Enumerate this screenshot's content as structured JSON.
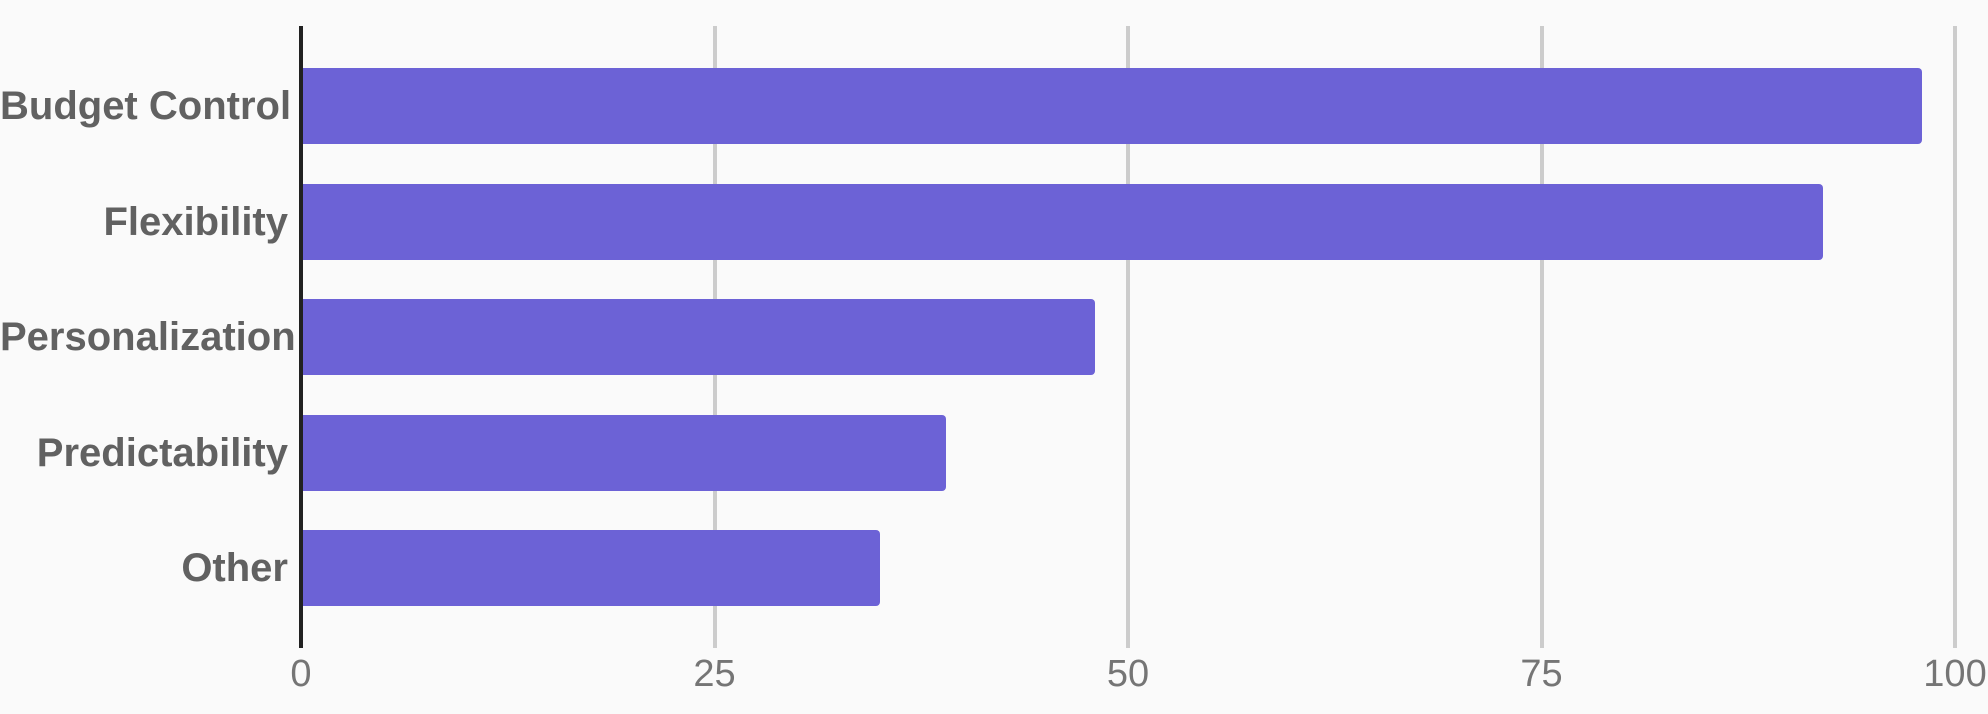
{
  "chart_data": {
    "type": "bar",
    "orientation": "horizontal",
    "categories": [
      "Budget Control",
      "Flexibility",
      "Personalization",
      "Predictability",
      "Other"
    ],
    "values": [
      98,
      92,
      48,
      39,
      35
    ],
    "xticks": [
      0,
      25,
      50,
      75,
      100
    ],
    "xlim": [
      0,
      100
    ],
    "grid": true,
    "legend": "none",
    "title": "",
    "xlabel": "",
    "ylabel": "",
    "colors": {
      "bar": "#6C62D6",
      "axis": "#212121",
      "gridline": "#cccccc",
      "tick_label": "#757575",
      "category_label": "#616161",
      "background": "#fafafa"
    }
  }
}
